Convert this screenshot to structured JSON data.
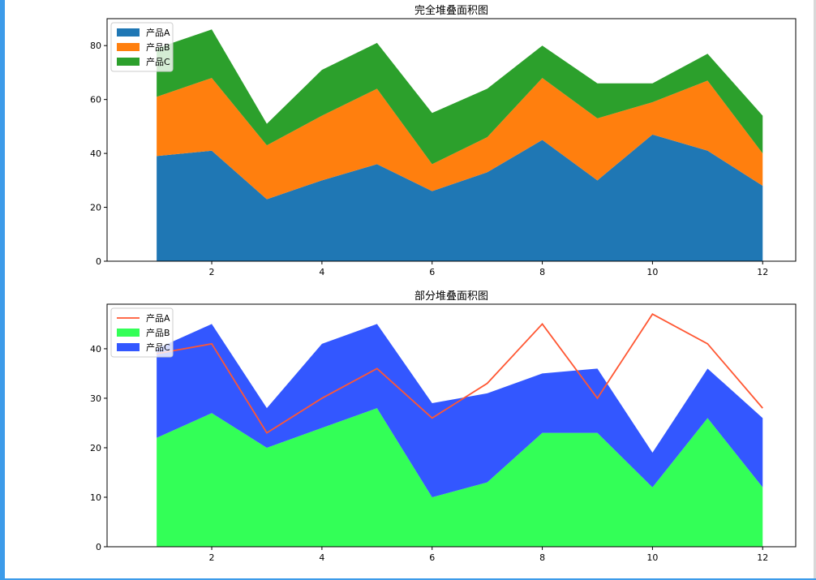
{
  "chart_data": [
    {
      "type": "area",
      "stacked": true,
      "title": "完全堆叠面积图",
      "xlabel": "",
      "ylabel": "",
      "x": [
        1,
        2,
        3,
        4,
        5,
        6,
        7,
        8,
        9,
        10,
        11,
        12
      ],
      "xticks": [
        2,
        4,
        6,
        8,
        10,
        12
      ],
      "xlim": [
        0.1,
        12.6
      ],
      "ylim": [
        0,
        90
      ],
      "yticks": [
        0,
        20,
        40,
        60,
        80
      ],
      "legend": "upper-left",
      "series": [
        {
          "name": "产品A",
          "kind": "area",
          "color": "#1f77b4",
          "values": [
            39,
            41,
            23,
            30,
            36,
            26,
            33,
            45,
            30,
            47,
            41,
            28
          ]
        },
        {
          "name": "产品B",
          "kind": "area",
          "color": "#ff7f0e",
          "values": [
            22,
            27,
            20,
            24,
            28,
            10,
            13,
            23,
            23,
            12,
            26,
            12
          ]
        },
        {
          "name": "产品C",
          "kind": "area",
          "color": "#2ca02c",
          "values": [
            18,
            18,
            8,
            17,
            17,
            19,
            18,
            12,
            13,
            7,
            10,
            14
          ]
        }
      ]
    },
    {
      "type": "area",
      "stacked": true,
      "title": "部分堆叠面积图",
      "xlabel": "",
      "ylabel": "",
      "x": [
        1,
        2,
        3,
        4,
        5,
        6,
        7,
        8,
        9,
        10,
        11,
        12
      ],
      "xticks": [
        2,
        4,
        6,
        8,
        10,
        12
      ],
      "xlim": [
        0.1,
        12.6
      ],
      "ylim": [
        0,
        49
      ],
      "yticks": [
        0,
        10,
        20,
        30,
        40
      ],
      "legend": "upper-left",
      "series": [
        {
          "name": "产品A",
          "kind": "line",
          "color": "#ff5733",
          "values": [
            39,
            41,
            23,
            30,
            36,
            26,
            33,
            45,
            30,
            47,
            41,
            28
          ]
        },
        {
          "name": "产品B",
          "kind": "area",
          "color": "#33ff57",
          "values": [
            22,
            27,
            20,
            24,
            28,
            10,
            13,
            23,
            23,
            12,
            26,
            12
          ]
        },
        {
          "name": "产品C",
          "kind": "area",
          "color": "#3357ff",
          "values": [
            18,
            18,
            8,
            17,
            17,
            19,
            18,
            12,
            13,
            7,
            10,
            14
          ]
        }
      ]
    }
  ]
}
